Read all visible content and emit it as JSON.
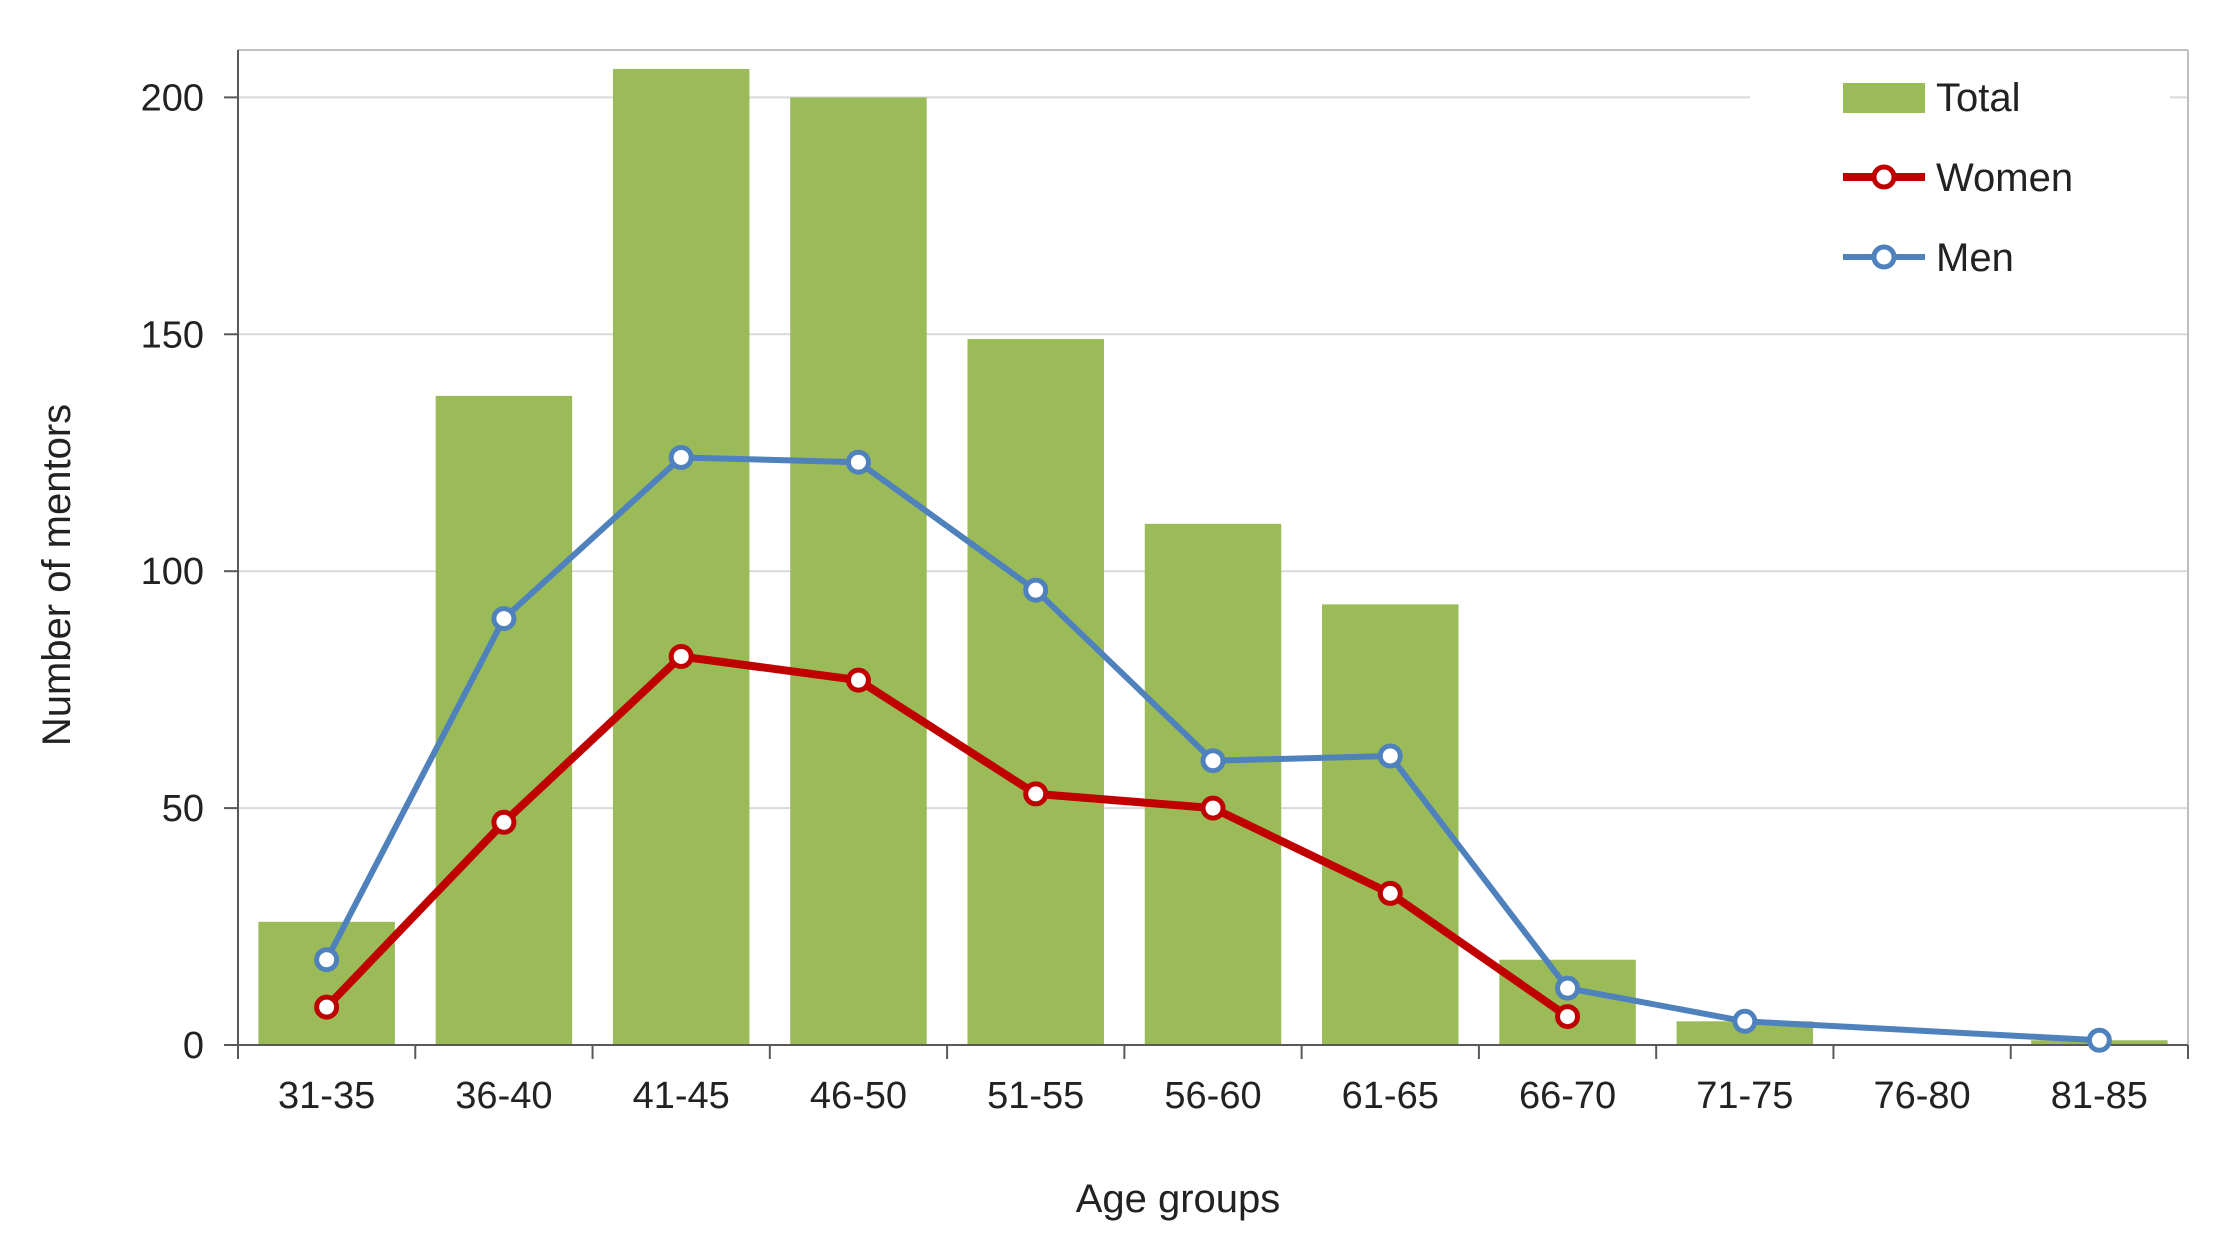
{
  "chart_data": {
    "type": "bar",
    "title": "",
    "xlabel": "Age groups",
    "ylabel": "Number of mentors",
    "ylim": [
      0,
      210
    ],
    "yticks": [
      0,
      50,
      100,
      150,
      200
    ],
    "grid": true,
    "legend_position": "top-right",
    "categories": [
      "31-35",
      "36-40",
      "41-45",
      "46-50",
      "51-55",
      "56-60",
      "61-65",
      "66-70",
      "71-75",
      "76-80",
      "81-85"
    ],
    "series": [
      {
        "name": "Total",
        "kind": "bar",
        "color": "#9bbb59",
        "values": [
          26,
          137,
          206,
          200,
          149,
          110,
          93,
          18,
          5,
          0,
          1
        ]
      },
      {
        "name": "Women",
        "kind": "line",
        "color": "#c00000",
        "values": [
          8,
          47,
          82,
          77,
          53,
          50,
          32,
          6,
          null,
          null,
          null
        ]
      },
      {
        "name": "Men",
        "kind": "line",
        "color": "#4f81bd",
        "values": [
          18,
          90,
          124,
          123,
          96,
          60,
          61,
          12,
          5,
          null,
          1
        ]
      }
    ]
  }
}
